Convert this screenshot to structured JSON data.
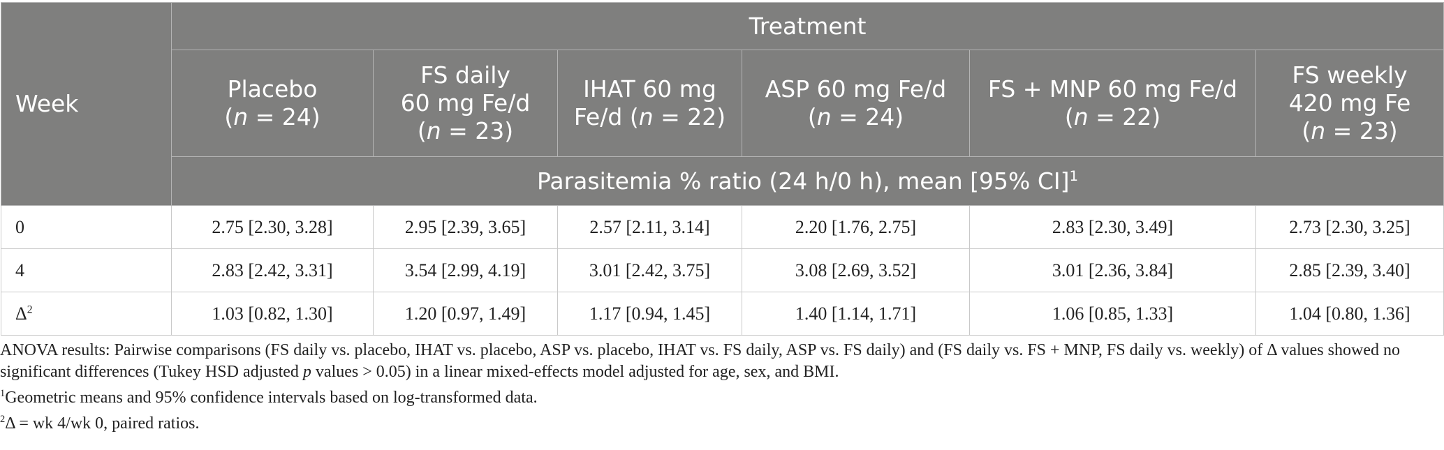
{
  "table": {
    "week_header": "Week",
    "treatment_header": "Treatment",
    "groups": [
      {
        "line1": "Placebo",
        "n": "n",
        "eq": " = 24)"
      },
      {
        "line1": "FS daily",
        "line2": "60 mg Fe/d",
        "n": "n",
        "eq": " = 23)"
      },
      {
        "line1": "IHAT 60 mg",
        "line2": "Fe/d (",
        "n": "n",
        "eq": " = 22)"
      },
      {
        "line1": "ASP 60 mg Fe/d",
        "n": "n",
        "eq": " = 24)"
      },
      {
        "line1": "FS + MNP 60 mg Fe/d",
        "n": "n",
        "eq": " = 22)"
      },
      {
        "line1": "FS weekly",
        "line2": "420 mg Fe",
        "n": "n",
        "eq": " = 23)"
      }
    ],
    "parameter_label": "Parasitemia % ratio (24 h/0 h), mean [95% CI]",
    "parameter_sup": "1",
    "rows": [
      {
        "label": "0",
        "sup": "",
        "cells": [
          "2.75 [2.30, 3.28]",
          "2.95 [2.39, 3.65]",
          "2.57 [2.11, 3.14]",
          "2.20 [1.76, 2.75]",
          "2.83 [2.30, 3.49]",
          "2.73 [2.30, 3.25]"
        ]
      },
      {
        "label": "4",
        "sup": "",
        "cells": [
          "2.83 [2.42, 3.31]",
          "3.54 [2.99, 4.19]",
          "3.01 [2.42, 3.75]",
          "3.08 [2.69, 3.52]",
          "3.01 [2.36, 3.84]",
          "2.85 [2.39, 3.40]"
        ]
      },
      {
        "label": "Δ",
        "sup": "2",
        "cells": [
          "1.03 [0.82, 1.30]",
          "1.20 [0.97, 1.49]",
          "1.17 [0.94, 1.45]",
          "1.40 [1.14, 1.71]",
          "1.06 [0.85, 1.33]",
          "1.04 [0.80, 1.36]"
        ]
      }
    ]
  },
  "footnotes": {
    "anova_part1": "ANOVA results: Pairwise comparisons (FS daily vs. placebo, IHAT vs. placebo, ASP vs. placebo, IHAT vs. FS daily, ASP vs. FS daily) and (FS daily vs. FS + MNP, FS daily vs. weekly) of Δ values showed no significant differences (Tukey HSD adjusted ",
    "anova_p": "p",
    "anova_part2": " values > 0.05) in a linear mixed-effects model adjusted for age, sex, and BMI.",
    "note1_sup": "1",
    "note1": "Geometric means and 95% confidence intervals based on log-transformed data.",
    "note2_sup": "2",
    "note2": "Δ = wk 4/wk 0, paired ratios."
  }
}
